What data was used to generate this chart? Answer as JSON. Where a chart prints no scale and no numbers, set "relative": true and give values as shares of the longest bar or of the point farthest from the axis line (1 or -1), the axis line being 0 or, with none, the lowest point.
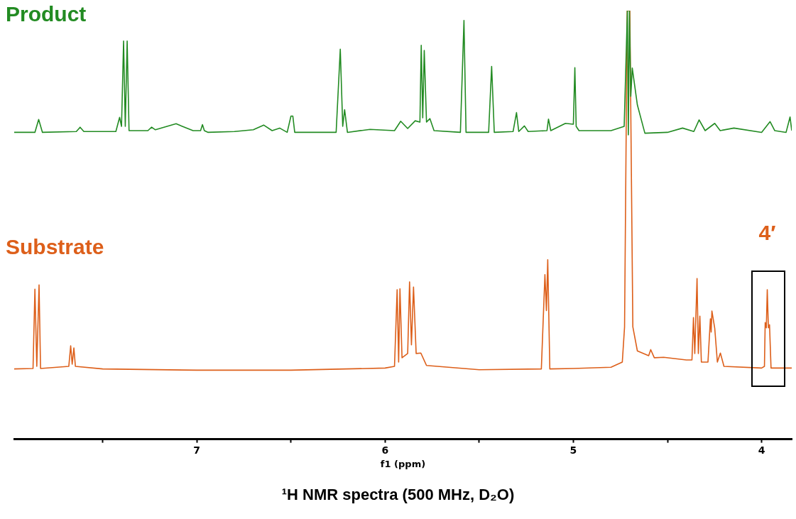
{
  "chart_data": {
    "type": "line",
    "title": "¹H NMR spectra (500 MHz, D₂O)",
    "xlabel": "f1 (ppm)",
    "relative": true,
    "legend": false,
    "marker": "none",
    "xlim": [
      7.97,
      3.84
    ],
    "xticks": [
      {
        "value": 7.5,
        "label": null
      },
      7,
      {
        "value": 6.5,
        "label": null
      },
      6,
      {
        "value": 5.5,
        "label": null
      },
      5,
      {
        "value": 4.5,
        "label": null
      },
      4
    ],
    "annotations": [
      {
        "text": "4′",
        "x": 3.97,
        "y": 0.349
      }
    ],
    "series": [
      {
        "name": "Product",
        "color": "#228b22",
        "x": [
          7.97,
          7.86,
          7.84,
          7.82,
          7.64,
          7.62,
          7.6,
          7.43,
          7.41,
          7.4,
          7.389,
          7.38,
          7.37,
          7.36,
          7.26,
          7.24,
          7.22,
          7.11,
          7.02,
          6.98,
          6.97,
          6.96,
          6.94,
          6.8,
          6.7,
          6.645,
          6.6,
          6.56,
          6.52,
          6.5,
          6.49,
          6.48,
          6.26,
          6.238,
          6.225,
          6.215,
          6.2,
          6.08,
          5.95,
          5.917,
          5.88,
          5.84,
          5.815,
          5.808,
          5.8,
          5.792,
          5.78,
          5.762,
          5.74,
          5.6,
          5.581,
          5.57,
          5.45,
          5.434,
          5.42,
          5.32,
          5.302,
          5.29,
          5.26,
          5.24,
          5.14,
          5.132,
          5.12,
          5.042,
          5.0,
          4.992,
          4.985,
          4.97,
          4.8,
          4.73,
          4.713,
          4.708,
          4.702,
          4.695,
          4.687,
          4.66,
          4.62,
          4.5,
          4.42,
          4.36,
          4.332,
          4.3,
          4.249,
          4.22,
          4.147,
          4.0,
          3.955,
          3.93,
          3.87,
          3.849,
          3.84
        ],
        "values": [
          0.716,
          0.716,
          0.746,
          0.716,
          0.718,
          0.728,
          0.718,
          0.718,
          0.751,
          0.73,
          0.929,
          0.73,
          0.929,
          0.72,
          0.72,
          0.728,
          0.722,
          0.736,
          0.72,
          0.72,
          0.734,
          0.72,
          0.716,
          0.718,
          0.722,
          0.733,
          0.72,
          0.726,
          0.716,
          0.754,
          0.754,
          0.716,
          0.716,
          0.91,
          0.73,
          0.769,
          0.716,
          0.723,
          0.72,
          0.742,
          0.725,
          0.743,
          0.74,
          0.919,
          0.75,
          0.907,
          0.74,
          0.748,
          0.72,
          0.716,
          0.977,
          0.716,
          0.716,
          0.87,
          0.716,
          0.718,
          0.762,
          0.718,
          0.731,
          0.718,
          0.72,
          0.747,
          0.72,
          0.737,
          0.735,
          0.867,
          0.73,
          0.72,
          0.72,
          0.73,
          1,
          0.71,
          1,
          0.8,
          0.866,
          0.78,
          0.714,
          0.716,
          0.726,
          0.718,
          0.745,
          0.72,
          0.737,
          0.72,
          0.726,
          0.716,
          0.741,
          0.72,
          0.716,
          0.752,
          0.72
        ]
      },
      {
        "name": "Substrate",
        "color": "#dd5f1a",
        "x": [
          7.97,
          7.87,
          7.86,
          7.85,
          7.838,
          7.83,
          7.68,
          7.67,
          7.662,
          7.653,
          7.645,
          7.5,
          7.0,
          6.5,
          6.0,
          5.95,
          5.936,
          5.928,
          5.921,
          5.91,
          5.88,
          5.87,
          5.86,
          5.849,
          5.835,
          5.81,
          5.78,
          5.5,
          5.17,
          5.151,
          5.143,
          5.136,
          5.125,
          5.0,
          4.8,
          4.74,
          4.728,
          4.714,
          4.7,
          4.684,
          4.66,
          4.6,
          4.589,
          4.57,
          4.52,
          4.4,
          4.37,
          4.362,
          4.355,
          4.343,
          4.336,
          4.328,
          4.32,
          4.285,
          4.272,
          4.268,
          4.264,
          4.249,
          4.235,
          4.219,
          4.2,
          4.0,
          3.985,
          3.981,
          3.975,
          3.97,
          3.964,
          3.958,
          3.95,
          3.84
        ],
        "values": [
          0.164,
          0.165,
          0.35,
          0.17,
          0.36,
          0.165,
          0.17,
          0.218,
          0.175,
          0.213,
          0.17,
          0.164,
          0.161,
          0.161,
          0.166,
          0.17,
          0.349,
          0.18,
          0.351,
          0.19,
          0.2,
          0.367,
          0.22,
          0.355,
          0.2,
          0.201,
          0.172,
          0.162,
          0.164,
          0.384,
          0.3,
          0.419,
          0.164,
          0.165,
          0.168,
          0.18,
          0.262,
          1,
          1,
          0.262,
          0.206,
          0.195,
          0.209,
          0.19,
          0.191,
          0.185,
          0.185,
          0.284,
          0.2,
          0.375,
          0.2,
          0.287,
          0.18,
          0.18,
          0.281,
          0.25,
          0.299,
          0.259,
          0.18,
          0.201,
          0.17,
          0.166,
          0.17,
          0.272,
          0.26,
          0.349,
          0.26,
          0.267,
          0.166,
          0.166
        ]
      }
    ]
  }
}
